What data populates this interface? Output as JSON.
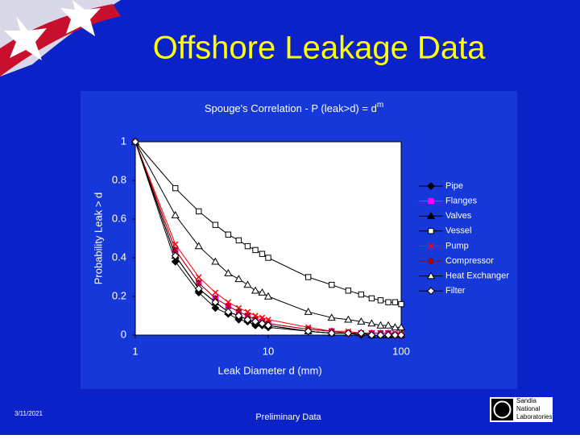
{
  "slide": {
    "title": "Offshore Leakage Data",
    "date": "3/11/2021",
    "footer": "Preliminary Data",
    "logo": [
      "Sandia",
      "National",
      "Laboratories"
    ]
  },
  "chart_data": {
    "type": "line",
    "title": "Spouge's Correlation - P (leak>d) = d",
    "title_exponent": "m",
    "x_label": "Leak Diameter d (mm)",
    "y_label": "Probability Leak > d",
    "x": [
      1,
      2,
      3,
      4,
      5,
      6,
      7,
      8,
      9,
      10,
      20,
      30,
      40,
      50,
      60,
      70,
      80,
      90,
      100
    ],
    "xlim": [
      1,
      100
    ],
    "xticks": [
      1,
      10,
      100
    ],
    "xlog": true,
    "ylim": [
      0,
      1
    ],
    "yticks": [
      0,
      0.2,
      0.4,
      0.6,
      0.8,
      1
    ],
    "legend": "right",
    "series": [
      {
        "name": "Pipe",
        "color": "#000000",
        "marker": "diamond",
        "filled": true,
        "values": [
          1,
          0.38,
          0.22,
          0.14,
          0.11,
          0.08,
          0.07,
          0.05,
          0.05,
          0.04,
          0.02,
          0.01,
          0.01,
          0,
          0,
          0,
          0,
          0,
          0
        ]
      },
      {
        "name": "Flanges",
        "color": "#ff00ff",
        "marker": "square",
        "filled": true,
        "values": [
          1,
          0.44,
          0.27,
          0.19,
          0.15,
          0.12,
          0.1,
          0.08,
          0.07,
          0.06,
          0.03,
          0.02,
          0.01,
          0.01,
          0.01,
          0.01,
          0.01,
          0,
          0
        ]
      },
      {
        "name": "Valves",
        "color": "#000000",
        "marker": "triangle",
        "filled": true,
        "values": [
          1,
          0.41,
          0.24,
          0.17,
          0.12,
          0.1,
          0.08,
          0.07,
          0.06,
          0.05,
          0.02,
          0.01,
          0.01,
          0.01,
          0,
          0,
          0,
          0,
          0
        ]
      },
      {
        "name": "Vessel",
        "color": "#000000",
        "marker": "square",
        "filled": false,
        "values": [
          1,
          0.76,
          0.64,
          0.57,
          0.52,
          0.49,
          0.46,
          0.44,
          0.42,
          0.4,
          0.3,
          0.26,
          0.23,
          0.21,
          0.19,
          0.18,
          0.17,
          0.17,
          0.16
        ]
      },
      {
        "name": "Pump",
        "color": "#ff0000",
        "marker": "x",
        "filled": false,
        "values": [
          1,
          0.47,
          0.3,
          0.22,
          0.17,
          0.14,
          0.12,
          0.1,
          0.09,
          0.08,
          0.04,
          0.02,
          0.02,
          0.01,
          0.01,
          0.01,
          0.01,
          0.01,
          0.01
        ]
      },
      {
        "name": "Compressor",
        "color": "#a00000",
        "marker": "star",
        "filled": true,
        "values": [
          1,
          0.44,
          0.27,
          0.19,
          0.15,
          0.12,
          0.1,
          0.08,
          0.07,
          0.06,
          0.03,
          0.02,
          0.01,
          0.01,
          0.01,
          0.01,
          0.01,
          0,
          0
        ]
      },
      {
        "name": "Heat Exchanger",
        "color": "#000000",
        "marker": "triangle",
        "filled": false,
        "values": [
          1,
          0.62,
          0.46,
          0.38,
          0.32,
          0.29,
          0.26,
          0.23,
          0.22,
          0.2,
          0.12,
          0.09,
          0.08,
          0.07,
          0.06,
          0.05,
          0.05,
          0.04,
          0.04
        ]
      },
      {
        "name": "Filter",
        "color": "#000000",
        "marker": "diamond",
        "filled": false,
        "values": [
          1,
          0.41,
          0.24,
          0.17,
          0.12,
          0.1,
          0.08,
          0.07,
          0.06,
          0.05,
          0.02,
          0.01,
          0.01,
          0.01,
          0,
          0,
          0,
          0,
          0
        ]
      }
    ]
  }
}
